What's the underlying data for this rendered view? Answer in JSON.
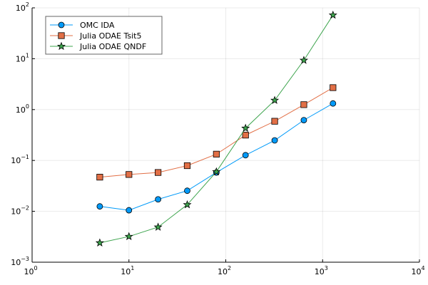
{
  "chart_data": {
    "type": "line",
    "x_scale": "log",
    "y_scale": "log",
    "xlim": [
      1,
      10000
    ],
    "ylim": [
      0.001,
      100
    ],
    "x_ticks": [
      1,
      10,
      100,
      1000,
      10000
    ],
    "y_ticks": [
      0.001,
      0.01,
      0.1,
      1,
      10,
      100
    ],
    "x_tick_labels": [
      {
        "base": "10",
        "exp": "0"
      },
      {
        "base": "10",
        "exp": "1"
      },
      {
        "base": "10",
        "exp": "2"
      },
      {
        "base": "10",
        "exp": "3"
      },
      {
        "base": "10",
        "exp": "4"
      }
    ],
    "y_tick_labels": [
      {
        "base": "10",
        "exp": "−3"
      },
      {
        "base": "10",
        "exp": "−2"
      },
      {
        "base": "10",
        "exp": "−1"
      },
      {
        "base": "10",
        "exp": "0"
      },
      {
        "base": "10",
        "exp": "1"
      },
      {
        "base": "10",
        "exp": "2"
      }
    ],
    "grid": true,
    "legend_position": "top-left",
    "x": [
      5,
      10,
      20,
      40,
      80,
      160,
      320,
      640,
      1280
    ],
    "series": [
      {
        "name": "OMC IDA",
        "color": "#009af9",
        "marker": "circle",
        "values": [
          0.0125,
          0.0105,
          0.0172,
          0.0254,
          0.058,
          0.127,
          0.248,
          0.62,
          1.32
        ]
      },
      {
        "name": "Julia ODAE Tsit5",
        "color": "#e26f46",
        "marker": "square",
        "values": [
          0.047,
          0.053,
          0.058,
          0.079,
          0.133,
          0.315,
          0.59,
          1.25,
          2.7
        ]
      },
      {
        "name": "Julia ODAE QNDF",
        "color": "#3da44d",
        "marker": "star",
        "values": [
          0.0024,
          0.0032,
          0.0049,
          0.0135,
          0.06,
          0.43,
          1.52,
          9.3,
          72
        ]
      }
    ]
  }
}
